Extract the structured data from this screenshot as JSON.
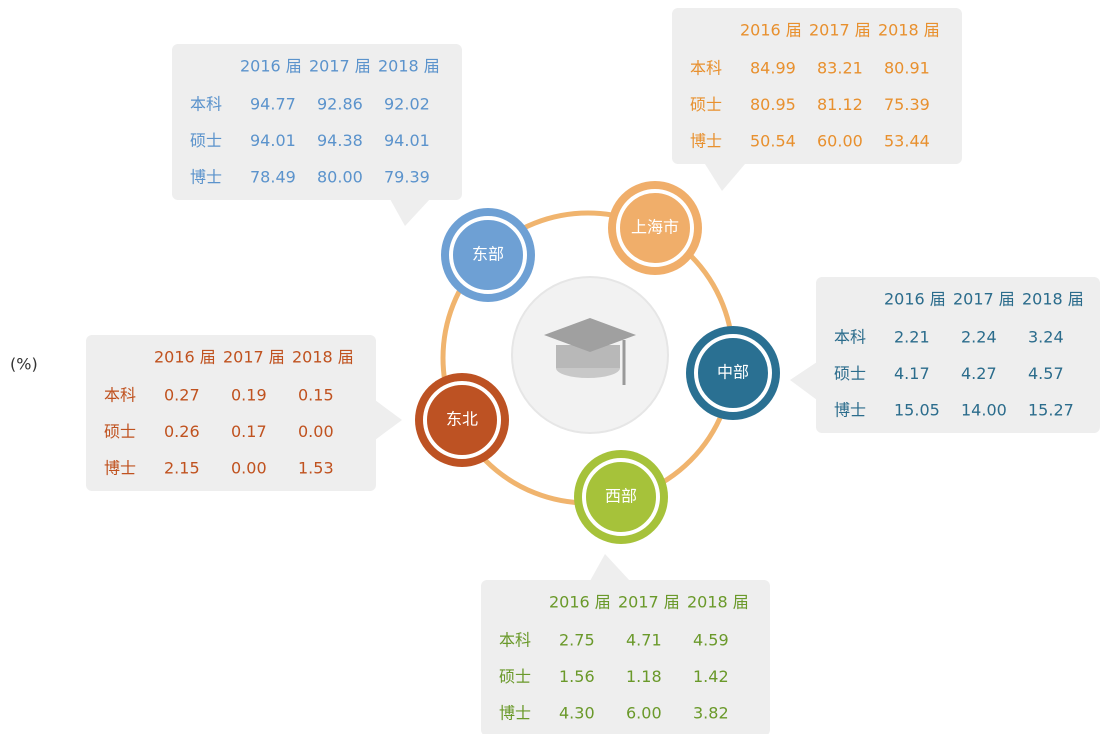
{
  "unit": "(%)",
  "regions": [
    {
      "name": "东部",
      "color": "#5b93cc",
      "node_color": "#6ea0d4",
      "columns": [
        "2016 届",
        "2017 届",
        "2018 届"
      ],
      "rows": [
        {
          "label": "本科",
          "values": [
            "94.77",
            "92.86",
            "92.02"
          ]
        },
        {
          "label": "硕士",
          "values": [
            "94.01",
            "94.38",
            "94.01"
          ]
        },
        {
          "label": "博士",
          "values": [
            "78.49",
            "80.00",
            "79.39"
          ]
        }
      ]
    },
    {
      "name": "上海市",
      "color": "#e8902e",
      "node_color": "#f0ae6a",
      "columns": [
        "2016 届",
        "2017 届",
        "2018 届"
      ],
      "rows": [
        {
          "label": "本科",
          "values": [
            "84.99",
            "83.21",
            "80.91"
          ]
        },
        {
          "label": "硕士",
          "values": [
            "80.95",
            "81.12",
            "75.39"
          ]
        },
        {
          "label": "博士",
          "values": [
            "50.54",
            "60.00",
            "53.44"
          ]
        }
      ]
    },
    {
      "name": "中部",
      "color": "#2b6c8c",
      "node_color": "#2a7092",
      "columns": [
        "2016 届",
        "2017 届",
        "2018 届"
      ],
      "rows": [
        {
          "label": "本科",
          "values": [
            "2.21",
            "2.24",
            "3.24"
          ]
        },
        {
          "label": "硕士",
          "values": [
            "4.17",
            "4.27",
            "4.57"
          ]
        },
        {
          "label": "博士",
          "values": [
            "15.05",
            "14.00",
            "15.27"
          ]
        }
      ]
    },
    {
      "name": "西部",
      "color": "#6a992a",
      "node_color": "#a6c23a",
      "columns": [
        "2016 届",
        "2017 届",
        "2018 届"
      ],
      "rows": [
        {
          "label": "本科",
          "values": [
            "2.75",
            "4.71",
            "4.59"
          ]
        },
        {
          "label": "硕士",
          "values": [
            "1.56",
            "1.18",
            "1.42"
          ]
        },
        {
          "label": "博士",
          "values": [
            "4.30",
            "6.00",
            "3.82"
          ]
        }
      ]
    },
    {
      "name": "东北",
      "color": "#c0521f",
      "node_color": "#bd5223",
      "columns": [
        "2016 届",
        "2017 届",
        "2018 届"
      ],
      "rows": [
        {
          "label": "本科",
          "values": [
            "0.27",
            "0.19",
            "0.15"
          ]
        },
        {
          "label": "硕士",
          "values": [
            "0.26",
            "0.17",
            "0.00"
          ]
        },
        {
          "label": "博士",
          "values": [
            "2.15",
            "0.00",
            "1.53"
          ]
        }
      ]
    }
  ]
}
